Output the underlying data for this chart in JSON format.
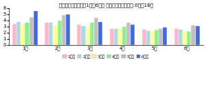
{
  "title": "心と体の健康観察（1回～6回） 各学年の平均値　　:0点～18点",
  "categories": [
    "1年",
    "2年",
    "3年",
    "4年",
    "5年",
    "6年"
  ],
  "series": [
    {
      "label": "1回目",
      "color": "#FFB6C8",
      "values": [
        3.4,
        3.7,
        3.3,
        2.6,
        2.5,
        2.6
      ]
    },
    {
      "label": "2回目",
      "color": "#ADD8E6",
      "values": [
        3.8,
        3.7,
        3.1,
        2.7,
        2.3,
        2.5
      ]
    },
    {
      "label": "3回目",
      "color": "#FFFF99",
      "values": [
        3.3,
        3.2,
        3.0,
        2.6,
        2.3,
        2.3
      ]
    },
    {
      "label": "4回目",
      "color": "#90EE90",
      "values": [
        3.6,
        4.0,
        3.6,
        3.0,
        2.4,
        2.2
      ]
    },
    {
      "label": "5回目",
      "color": "#C0C0C0",
      "values": [
        4.5,
        4.9,
        4.4,
        3.7,
        2.7,
        3.2
      ]
    },
    {
      "label": "6回目",
      "color": "#4169E1",
      "values": [
        5.6,
        5.0,
        3.8,
        3.3,
        2.9,
        3.1
      ]
    }
  ],
  "ylim": [
    0,
    6
  ],
  "yticks": [
    0,
    1,
    2,
    3,
    4,
    5,
    6
  ],
  "legend_cols": 6,
  "title_fontsize": 5.2,
  "tick_fontsize": 5,
  "legend_fontsize": 4.5
}
